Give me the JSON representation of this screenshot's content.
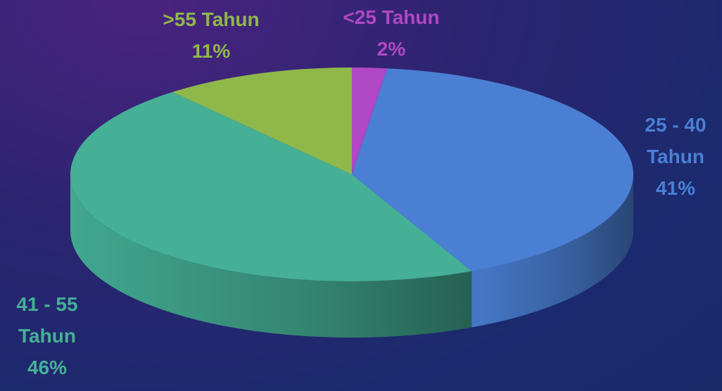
{
  "chart_data": {
    "type": "pie3d",
    "categories": [
      "<25 Tahun",
      "25 - 40 Tahun",
      "41 - 55 Tahun",
      ">55 Tahun"
    ],
    "values": [
      2,
      41,
      46,
      11
    ],
    "value_labels": [
      "2%",
      "41%",
      "46%",
      "11%"
    ],
    "colors": [
      "#b047c4",
      "#4a7fd4",
      "#45b096",
      "#8fb84a"
    ]
  }
}
